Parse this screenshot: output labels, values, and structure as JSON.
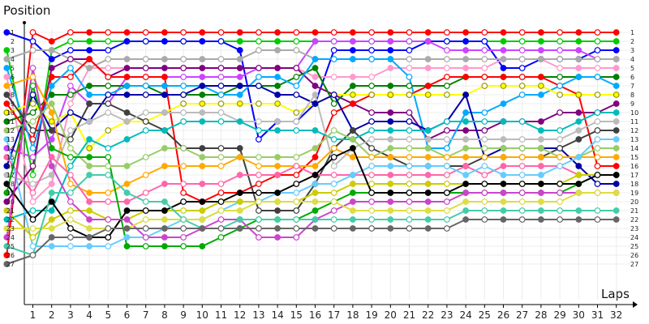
{
  "chart_data": {
    "type": "line",
    "ylabel": "Position",
    "xlabel": "Laps",
    "x": [
      0,
      1,
      2,
      3,
      4,
      5,
      6,
      7,
      8,
      9,
      10,
      11,
      12,
      13,
      14,
      15,
      16,
      17,
      18,
      19,
      20,
      21,
      22,
      23,
      24,
      25,
      26,
      27,
      28,
      29,
      30,
      31,
      32
    ],
    "x_ticks": [
      1,
      2,
      3,
      4,
      5,
      6,
      7,
      8,
      9,
      10,
      11,
      12,
      13,
      14,
      15,
      16,
      17,
      18,
      19,
      20,
      21,
      22,
      23,
      24,
      25,
      26,
      27,
      28,
      29,
      30,
      31,
      32
    ],
    "y_ticks": [
      1,
      2,
      3,
      4,
      5,
      6,
      7,
      8,
      9,
      10,
      11,
      12,
      13,
      14,
      15,
      16,
      17,
      18,
      19,
      20,
      21,
      22,
      23,
      24,
      25,
      26,
      27
    ],
    "xlim": [
      0,
      32.6
    ],
    "ylim": [
      27,
      1
    ],
    "y_inverted": true,
    "grid": true,
    "series": [
      {
        "color": "#ff0000",
        "values": [
          26,
          1,
          2,
          1,
          1,
          1,
          1,
          1,
          1,
          1,
          1,
          1,
          1,
          1,
          1,
          1,
          1,
          1,
          1,
          1,
          1,
          1,
          1,
          1,
          1,
          1,
          1,
          1,
          1,
          1,
          1,
          1,
          1
        ]
      },
      {
        "color": "#00cc00",
        "values": [
          3,
          17,
          3,
          2,
          2,
          2,
          2,
          2,
          2,
          2,
          2,
          2,
          2,
          2,
          2,
          2,
          2,
          2,
          2,
          2,
          2,
          2,
          2,
          2,
          2,
          2,
          2,
          2,
          2,
          2,
          2,
          2,
          2
        ]
      },
      {
        "color": "#0000ff",
        "values": [
          1,
          2,
          4,
          3,
          3,
          3,
          2,
          2,
          2,
          2,
          2,
          2,
          3,
          13,
          11,
          11,
          9,
          3,
          3,
          3,
          3,
          3,
          2,
          2,
          2,
          2,
          5,
          5,
          4,
          4,
          4,
          3,
          3
        ]
      },
      {
        "color": "#cc44ff",
        "values": [
          14,
          15,
          13,
          7,
          9,
          9,
          6,
          6,
          6,
          6,
          6,
          6,
          6,
          5,
          5,
          5,
          2,
          2,
          2,
          2,
          2,
          2,
          2,
          3,
          3,
          3,
          3,
          3,
          3,
          3,
          3,
          4,
          4
        ]
      },
      {
        "color": "#ff99cc",
        "values": [
          6,
          20,
          18,
          9,
          5,
          5,
          5,
          5,
          5,
          5,
          5,
          5,
          5,
          5,
          5,
          5,
          6,
          6,
          6,
          6,
          5,
          5,
          5,
          5,
          5,
          5,
          4,
          4,
          4,
          5,
          5,
          5,
          5
        ]
      },
      {
        "color": "#aaaaaa",
        "values": [
          4,
          3,
          3,
          4,
          5,
          4,
          4,
          4,
          4,
          4,
          4,
          4,
          4,
          3,
          3,
          3,
          4,
          4,
          4,
          4,
          4,
          4,
          4,
          4,
          4,
          4,
          4,
          4,
          4,
          4,
          4,
          4,
          4
        ]
      },
      {
        "color": "#800080",
        "values": [
          20,
          16,
          5,
          4,
          4,
          6,
          5,
          5,
          5,
          5,
          5,
          5,
          5,
          5,
          5,
          5,
          7,
          8,
          9,
          10,
          10,
          10,
          13,
          12,
          12,
          12,
          11,
          11,
          11,
          10,
          10,
          10,
          9
        ]
      },
      {
        "color": "#008000",
        "values": [
          11,
          10,
          8,
          8,
          7,
          7,
          7,
          7,
          8,
          8,
          8,
          8,
          7,
          7,
          7,
          6,
          5,
          9,
          7,
          7,
          7,
          7,
          7,
          7,
          6,
          6,
          6,
          6,
          6,
          6,
          6,
          6,
          6
        ]
      },
      {
        "color": "#ff0000",
        "values": [
          9,
          13,
          6,
          6,
          4,
          6,
          6,
          6,
          6,
          19,
          20,
          19,
          19,
          18,
          17,
          17,
          15,
          10,
          9,
          8,
          8,
          8,
          7,
          6,
          6,
          6,
          6,
          6,
          6,
          7,
          8,
          16,
          16
        ]
      },
      {
        "color": "#00aaff",
        "values": [
          5,
          14,
          7,
          5,
          8,
          8,
          7,
          7,
          7,
          7,
          7,
          8,
          8,
          6,
          6,
          7,
          4,
          4,
          4,
          4,
          4,
          6,
          14,
          14,
          10,
          10,
          9,
          8,
          8,
          7,
          6,
          6,
          7
        ]
      },
      {
        "color": "#ffff00",
        "values": [
          10,
          9,
          11,
          10,
          14,
          12,
          11,
          11,
          10,
          9,
          9,
          9,
          9,
          9,
          9,
          10,
          9,
          8,
          8,
          8,
          8,
          8,
          8,
          8,
          8,
          7,
          7,
          7,
          7,
          8,
          8,
          8,
          8
        ]
      },
      {
        "color": "#0000aa",
        "values": [
          16,
          8,
          12,
          10,
          11,
          8,
          8,
          8,
          8,
          8,
          7,
          7,
          7,
          7,
          8,
          8,
          9,
          8,
          12,
          11,
          11,
          11,
          12,
          11,
          8,
          15,
          14,
          14,
          14,
          14,
          16,
          18,
          18
        ]
      },
      {
        "color": "#404040",
        "values": [
          8,
          12,
          12,
          13,
          9,
          9,
          10,
          11,
          12,
          14,
          14,
          14,
          14,
          21,
          21,
          21,
          18,
          14,
          12,
          14,
          15,
          16,
          16,
          16,
          16,
          15,
          15,
          15,
          15,
          14,
          13,
          12,
          12
        ]
      },
      {
        "color": "#bbbbbb",
        "values": [
          17,
          18,
          17,
          12,
          11,
          10,
          11,
          10,
          10,
          10,
          10,
          10,
          11,
          11,
          11,
          11,
          8,
          16,
          14,
          13,
          13,
          13,
          13,
          13,
          13,
          13,
          13,
          13,
          13,
          13,
          12,
          11,
          11
        ]
      },
      {
        "color": "#00bbbb",
        "values": [
          22,
          21,
          21,
          16,
          13,
          14,
          13,
          12,
          12,
          11,
          11,
          11,
          11,
          12,
          12,
          12,
          12,
          13,
          13,
          12,
          12,
          12,
          12,
          11,
          11,
          11,
          11,
          11,
          12,
          12,
          11,
          10,
          10
        ]
      },
      {
        "color": "#99cc66",
        "values": [
          12,
          11,
          9,
          14,
          16,
          16,
          16,
          15,
          14,
          14,
          15,
          15,
          15,
          15,
          15,
          15,
          14,
          12,
          13,
          15,
          14,
          14,
          14,
          15,
          14,
          14,
          14,
          14,
          14,
          15,
          15,
          14,
          14
        ]
      },
      {
        "color": "#ffaa00",
        "values": [
          7,
          6,
          10,
          18,
          19,
          19,
          18,
          17,
          16,
          16,
          16,
          16,
          15,
          16,
          16,
          16,
          16,
          14,
          15,
          15,
          15,
          15,
          15,
          15,
          15,
          15,
          15,
          15,
          15,
          15,
          15,
          15,
          15
        ]
      },
      {
        "color": "#ff66aa",
        "values": [
          15,
          19,
          15,
          17,
          20,
          20,
          20,
          19,
          18,
          18,
          18,
          18,
          17,
          17,
          17,
          16,
          17,
          17,
          17,
          17,
          17,
          17,
          17,
          17,
          16,
          17,
          16,
          16,
          16,
          16,
          17,
          17,
          17
        ]
      },
      {
        "color": "#66ccff",
        "values": [
          13,
          25,
          25,
          25,
          25,
          25,
          24,
          24,
          23,
          22,
          22,
          21,
          20,
          20,
          19,
          19,
          18,
          18,
          17,
          16,
          16,
          16,
          16,
          16,
          17,
          16,
          17,
          17,
          17,
          16,
          15,
          13,
          13
        ]
      },
      {
        "color": "#cccc00",
        "values": [
          21,
          24,
          22,
          21,
          21,
          22,
          22,
          21,
          21,
          21,
          21,
          20,
          20,
          20,
          20,
          20,
          19,
          19,
          18,
          18,
          18,
          18,
          18,
          18,
          18,
          18,
          18,
          18,
          18,
          18,
          17,
          17,
          17
        ]
      },
      {
        "color": "#00aa00",
        "values": [
          19,
          7,
          14,
          15,
          15,
          15,
          25,
          25,
          25,
          25,
          25,
          24,
          23,
          22,
          22,
          22,
          21,
          20,
          19,
          19,
          19,
          19,
          19,
          19,
          19,
          19,
          19,
          19,
          19,
          19,
          18,
          17,
          17
        ]
      },
      {
        "color": "#000000",
        "values": [
          18,
          22,
          20,
          23,
          24,
          24,
          21,
          21,
          21,
          20,
          20,
          20,
          19,
          19,
          19,
          18,
          17,
          15,
          14,
          19,
          19,
          19,
          19,
          19,
          18,
          18,
          18,
          18,
          18,
          18,
          18,
          17,
          17
        ]
      },
      {
        "color": "#cc44cc",
        "values": [
          24,
          5,
          16,
          20,
          22,
          22,
          22,
          24,
          24,
          24,
          23,
          22,
          22,
          24,
          24,
          24,
          22,
          21,
          20,
          20,
          20,
          20,
          20,
          20,
          19,
          19,
          19,
          19,
          19,
          19,
          19,
          19,
          19
        ]
      },
      {
        "color": "#dddd44",
        "values": [
          23,
          23,
          23,
          22,
          23,
          23,
          23,
          22,
          22,
          22,
          22,
          21,
          21,
          20,
          20,
          20,
          20,
          20,
          21,
          21,
          21,
          21,
          21,
          21,
          20,
          20,
          20,
          20,
          20,
          20,
          19,
          19,
          19
        ]
      },
      {
        "color": "#44ccaa",
        "values": [
          25,
          26,
          19,
          19,
          17,
          17,
          19,
          20,
          20,
          22,
          23,
          23,
          22,
          22,
          22,
          22,
          22,
          22,
          22,
          22,
          22,
          22,
          22,
          22,
          21,
          21,
          21,
          21,
          21,
          21,
          21,
          21,
          21
        ]
      },
      {
        "color": "#666666",
        "values": [
          27,
          26,
          24,
          24,
          24,
          23,
          23,
          23,
          23,
          23,
          23,
          23,
          23,
          23,
          23,
          23,
          23,
          23,
          23,
          23,
          23,
          23,
          23,
          23,
          22,
          22,
          22,
          22,
          22,
          22,
          22,
          22,
          22
        ]
      }
    ]
  }
}
